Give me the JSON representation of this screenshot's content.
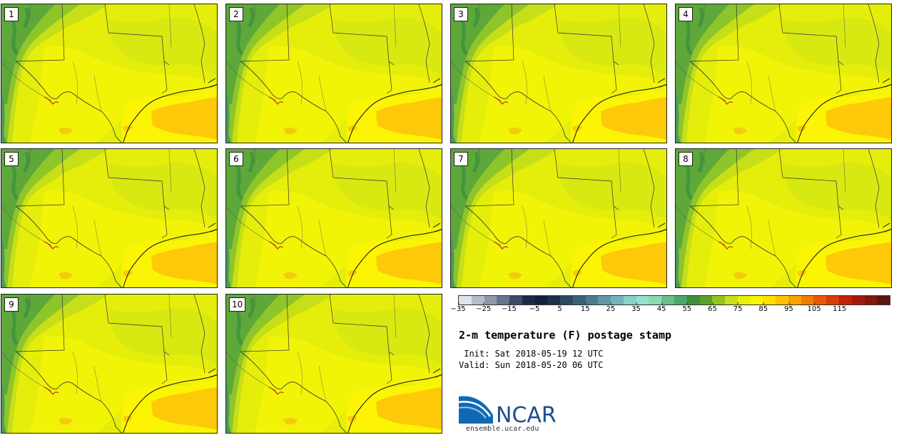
{
  "panels": [
    {
      "label": "1"
    },
    {
      "label": "2"
    },
    {
      "label": "3"
    },
    {
      "label": "4"
    },
    {
      "label": "5"
    },
    {
      "label": "6"
    },
    {
      "label": "7"
    },
    {
      "label": "8"
    },
    {
      "label": "9"
    },
    {
      "label": "10"
    }
  ],
  "colorbar": {
    "colors": [
      "#dfe3ea",
      "#b6bcc9",
      "#8e98ab",
      "#68738d",
      "#3d4a6a",
      "#1c2a4a",
      "#132238",
      "#1b2f4e",
      "#2b4965",
      "#3c617b",
      "#4d7b8f",
      "#5f98a6",
      "#72b6bd",
      "#88d1cd",
      "#96e2cf",
      "#8fd8b1",
      "#6dbf89",
      "#4ba868",
      "#3d8f3e",
      "#5aa12a",
      "#92c41a",
      "#c7e01a",
      "#e9ef08",
      "#f8f506",
      "#ffe000",
      "#fdc300",
      "#fca300",
      "#f67c00",
      "#ea5a06",
      "#d83d06",
      "#c22208",
      "#a21a0c",
      "#821808",
      "#5e1410"
    ],
    "tick_labels": [
      "−35",
      "−25",
      "−15",
      "−5",
      "5",
      "15",
      "25",
      "35",
      "45",
      "55",
      "65",
      "75",
      "85",
      "95",
      "105",
      "115"
    ]
  },
  "title": "2-m temperature (F) postage stamp",
  "init_line": " Init: Sat 2018-05-19 12 UTC",
  "valid_line": "Valid: Sun 2018-05-20 06 UTC",
  "logo_text": "NCAR",
  "site": "ensemble.ucar.edu"
}
